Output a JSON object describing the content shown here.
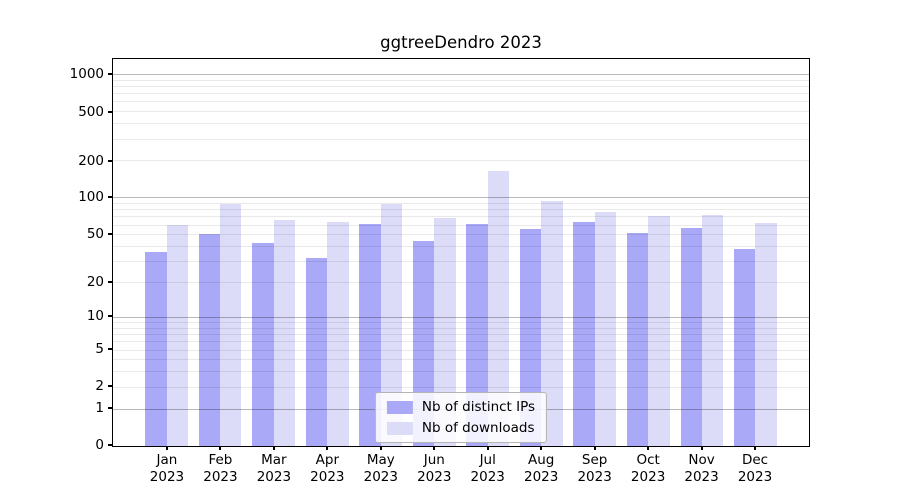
{
  "title": "ggtreeDendro 2023",
  "year": "2023",
  "legend": {
    "position": "lower center",
    "items": [
      {
        "label": "Nb of distinct IPs",
        "color": "#a9a9f8"
      },
      {
        "label": "Nb of downloads",
        "color": "#dcdcf9"
      }
    ]
  },
  "chart_data": {
    "type": "bar",
    "title": "ggtreeDendro 2023",
    "categories": [
      "Jan 2023",
      "Feb 2023",
      "Mar 2023",
      "Apr 2023",
      "May 2023",
      "Jun 2023",
      "Jul 2023",
      "Aug 2023",
      "Sep 2023",
      "Oct 2023",
      "Nov 2023",
      "Dec 2023"
    ],
    "month_labels": [
      "Jan",
      "Feb",
      "Mar",
      "Apr",
      "May",
      "Jun",
      "Jul",
      "Aug",
      "Sep",
      "Oct",
      "Nov",
      "Dec"
    ],
    "series": [
      {
        "name": "Nb of distinct IPs",
        "color": "#a9a9f8",
        "values": [
          36,
          50,
          42,
          32,
          61,
          44,
          61,
          55,
          63,
          51,
          56,
          38
        ]
      },
      {
        "name": "Nb of downloads",
        "color": "#dcdcf9",
        "values": [
          60,
          88,
          65,
          63,
          88,
          68,
          164,
          93,
          76,
          70,
          72,
          62
        ]
      }
    ],
    "xlabel": "",
    "ylabel": "",
    "y_scale": "log10(value+1)",
    "ylim": [
      0,
      1320
    ],
    "y_ticks": [
      1000,
      500,
      200,
      100,
      50,
      20,
      10,
      5,
      2,
      1,
      0
    ],
    "y_major_gridlines": [
      1,
      10,
      100,
      1000
    ],
    "y_minor_gridline_multipliers": [
      2,
      3,
      4,
      5,
      6,
      7,
      8,
      9
    ],
    "grid": true,
    "bar_group_width_fraction": 0.8,
    "x_slots": 13,
    "legend_position": "lower center"
  },
  "colors": {
    "background": "#ffffff",
    "spine": "#000000",
    "major_grid": "rgba(0,0,0,0.28)",
    "minor_grid": "rgba(0,0,0,0.085)",
    "text": "#000000",
    "legend_border": "#b5b5b5",
    "legend_background": "rgba(255,255,255,0.85)"
  }
}
